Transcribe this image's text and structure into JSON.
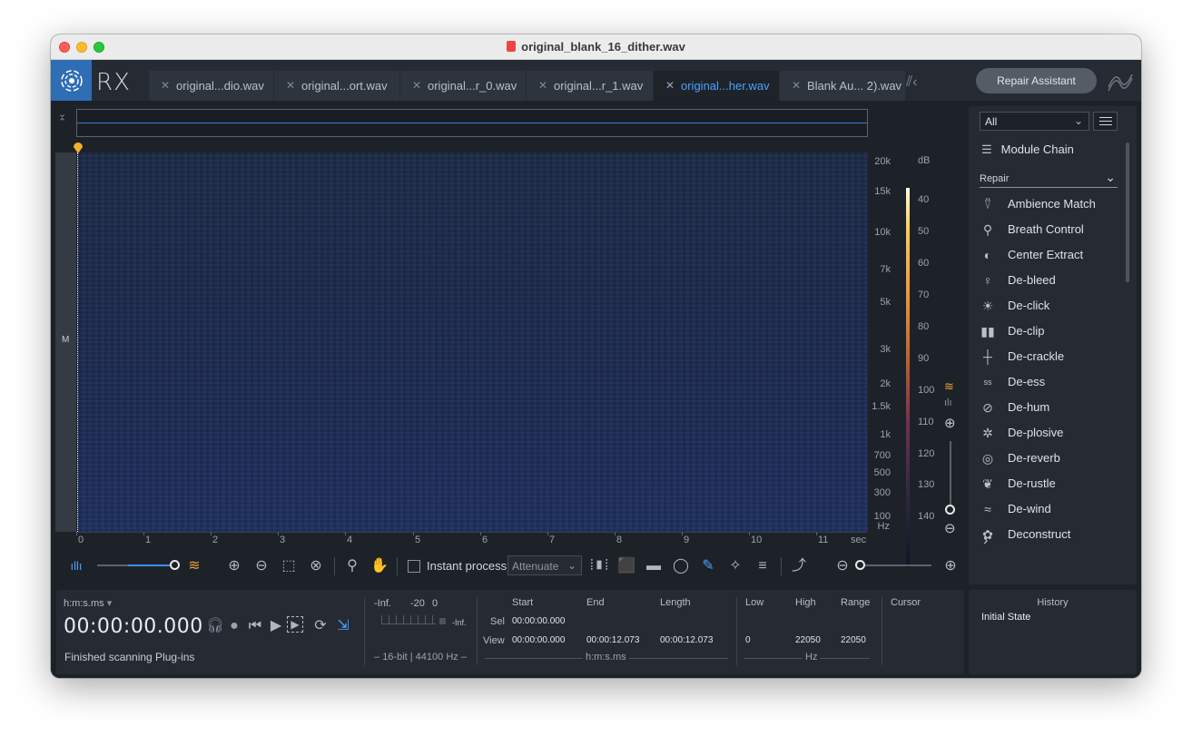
{
  "window": {
    "title": "original_blank_16_dither.wav"
  },
  "app": {
    "logo_text": "RX"
  },
  "tabs": [
    {
      "label": "original...dio.wav",
      "active": false
    },
    {
      "label": "original...ort.wav",
      "active": false
    },
    {
      "label": "original...r_0.wav",
      "active": false
    },
    {
      "label": "original...r_1.wav",
      "active": false
    },
    {
      "label": "original...her.wav",
      "active": true
    },
    {
      "label": "Blank Au... 2).wav",
      "active": false
    }
  ],
  "repair_assistant_label": "Repair Assistant",
  "channel_label": "M",
  "freq_axis": {
    "labels": [
      "20k",
      "15k",
      "10k",
      "7k",
      "5k",
      "3k",
      "2k",
      "1.5k",
      "1k",
      "700",
      "500",
      "300",
      "100"
    ],
    "unit": "Hz"
  },
  "db_axis": {
    "labels": [
      "dB",
      "40",
      "50",
      "60",
      "70",
      "80",
      "90",
      "100",
      "110",
      "120",
      "130",
      "140"
    ]
  },
  "time_axis": {
    "labels": [
      "0",
      "1",
      "2",
      "3",
      "4",
      "5",
      "6",
      "7",
      "8",
      "9",
      "10",
      "11"
    ],
    "unit": "sec"
  },
  "toolbar": {
    "instant_process_label": "Instant process",
    "attenuate_value": "Attenuate"
  },
  "transport": {
    "time_format": "h:m:s.ms",
    "current_time": "00:00:00.000",
    "status": "Finished scanning Plug-ins",
    "meter": {
      "scale_left": "-Inf.",
      "scale_mid": "-20",
      "scale_right": "0",
      "peak": "-Inf.",
      "format": "16-bit | 44100 Hz"
    },
    "selection": {
      "headers": [
        "Start",
        "End",
        "Length"
      ],
      "sel_label": "Sel",
      "sel_start": "00:00:00.000",
      "view_label": "View",
      "view_start": "00:00:00.000",
      "view_end": "00:00:12.073",
      "view_length": "00:00:12.073",
      "unit": "h:m:s.ms"
    },
    "freq": {
      "headers": [
        "Low",
        "High",
        "Range"
      ],
      "low": "0",
      "high": "22050",
      "range": "22050",
      "unit": "Hz"
    },
    "cursor_label": "Cursor"
  },
  "module_panel": {
    "filter_value": "All",
    "module_chain_label": "Module Chain",
    "category": "Repair",
    "items": [
      {
        "label": "Ambience Match",
        "icon": "ambience-match-icon"
      },
      {
        "label": "Breath Control",
        "icon": "breath-control-icon"
      },
      {
        "label": "Center Extract",
        "icon": "center-extract-icon"
      },
      {
        "label": "De-bleed",
        "icon": "de-bleed-icon"
      },
      {
        "label": "De-click",
        "icon": "de-click-icon"
      },
      {
        "label": "De-clip",
        "icon": "de-clip-icon"
      },
      {
        "label": "De-crackle",
        "icon": "de-crackle-icon"
      },
      {
        "label": "De-ess",
        "icon": "de-ess-icon"
      },
      {
        "label": "De-hum",
        "icon": "de-hum-icon"
      },
      {
        "label": "De-plosive",
        "icon": "de-plosive-icon"
      },
      {
        "label": "De-reverb",
        "icon": "de-reverb-icon"
      },
      {
        "label": "De-rustle",
        "icon": "de-rustle-icon"
      },
      {
        "label": "De-wind",
        "icon": "de-wind-icon"
      },
      {
        "label": "Deconstruct",
        "icon": "deconstruct-icon"
      }
    ]
  },
  "history": {
    "title": "History",
    "items": [
      "Initial State"
    ]
  }
}
